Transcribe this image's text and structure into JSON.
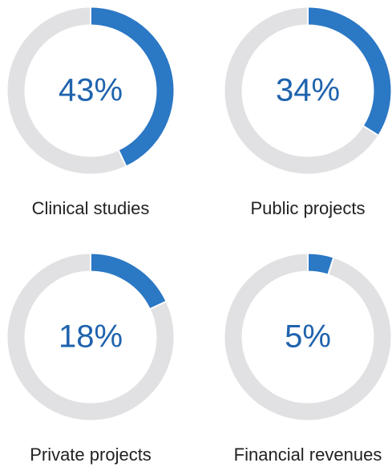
{
  "chart_data": [
    {
      "type": "donut",
      "title": "Clinical studies",
      "values": [
        43
      ],
      "value_labels": [
        "43%"
      ],
      "color": "#2b78c5",
      "track_color": "#e1e1e3"
    },
    {
      "type": "donut",
      "title": "Public projects",
      "values": [
        34
      ],
      "value_labels": [
        "34%"
      ],
      "color": "#2b78c5",
      "track_color": "#e1e1e3"
    },
    {
      "type": "donut",
      "title": "Private projects",
      "values": [
        18
      ],
      "value_labels": [
        "18%"
      ],
      "color": "#2b78c5",
      "track_color": "#e1e1e3"
    },
    {
      "type": "donut",
      "title": "Financial revenues",
      "values": [
        5
      ],
      "value_labels": [
        "5%"
      ],
      "color": "#2b78c5",
      "track_color": "#e1e1e3"
    }
  ]
}
